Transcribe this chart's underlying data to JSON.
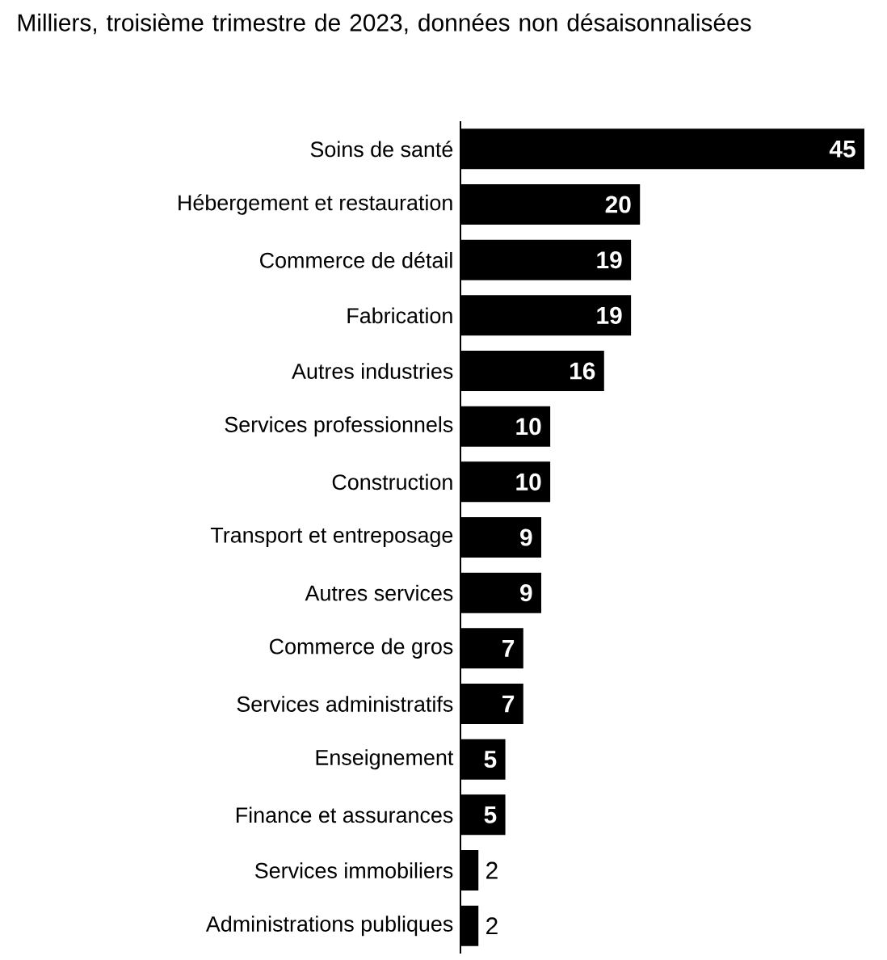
{
  "chart_data": {
    "type": "bar",
    "orientation": "horizontal",
    "title": "Milliers, troisième trimestre de 2023, données non désaisonnalisées",
    "categories": [
      "Soins de santé",
      "Hébergement et restauration",
      "Commerce de détail",
      "Fabrication",
      "Autres industries",
      "Services professionnels",
      "Construction",
      "Transport et entreposage",
      "Autres services",
      "Commerce de gros",
      "Services administratifs",
      "Enseignement",
      "Finance et assurances",
      "Services immobiliers",
      "Administrations publiques"
    ],
    "values": [
      45,
      20,
      19,
      19,
      16,
      10,
      10,
      9,
      9,
      7,
      7,
      5,
      5,
      2,
      2
    ],
    "color": "#000000",
    "data_labels": true
  }
}
